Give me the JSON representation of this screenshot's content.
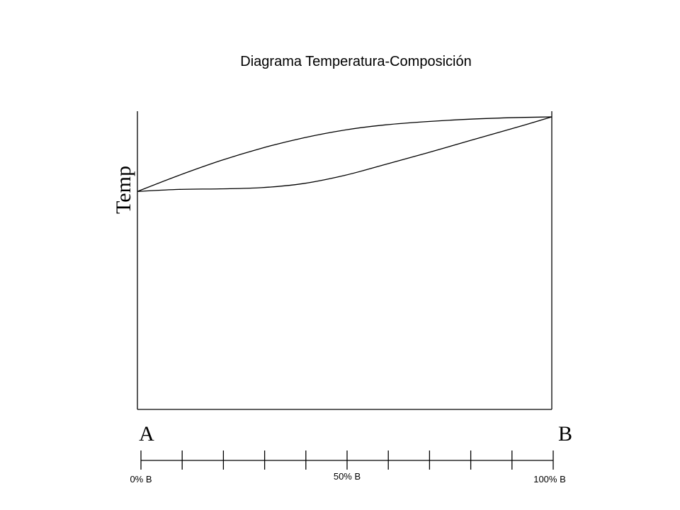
{
  "title": "Diagrama Temperatura-Composición",
  "y_axis_label": "Temp",
  "component_left": "A",
  "component_right": "B",
  "scale": {
    "tick_count": 11,
    "labels": {
      "start": "0% B",
      "middle": "50% B",
      "end": "100% B"
    }
  },
  "curves": {
    "upper_curve": [
      [
        0,
        0.745
      ],
      [
        0.1,
        0.8
      ],
      [
        0.2,
        0.85
      ],
      [
        0.3,
        0.893
      ],
      [
        0.4,
        0.928
      ],
      [
        0.5,
        0.955
      ],
      [
        0.6,
        0.973
      ],
      [
        0.7,
        0.984
      ],
      [
        0.8,
        0.992
      ],
      [
        0.9,
        0.997
      ],
      [
        1.0,
        1.0
      ]
    ],
    "lower_curve": [
      [
        0,
        0.745
      ],
      [
        0.1,
        0.752
      ],
      [
        0.2,
        0.754
      ],
      [
        0.3,
        0.758
      ],
      [
        0.4,
        0.772
      ],
      [
        0.5,
        0.8
      ],
      [
        0.6,
        0.838
      ],
      [
        0.7,
        0.877
      ],
      [
        0.8,
        0.918
      ],
      [
        0.9,
        0.958
      ],
      [
        1.0,
        1.0
      ]
    ]
  },
  "colors": {
    "line": "#000000",
    "background": "#ffffff"
  }
}
